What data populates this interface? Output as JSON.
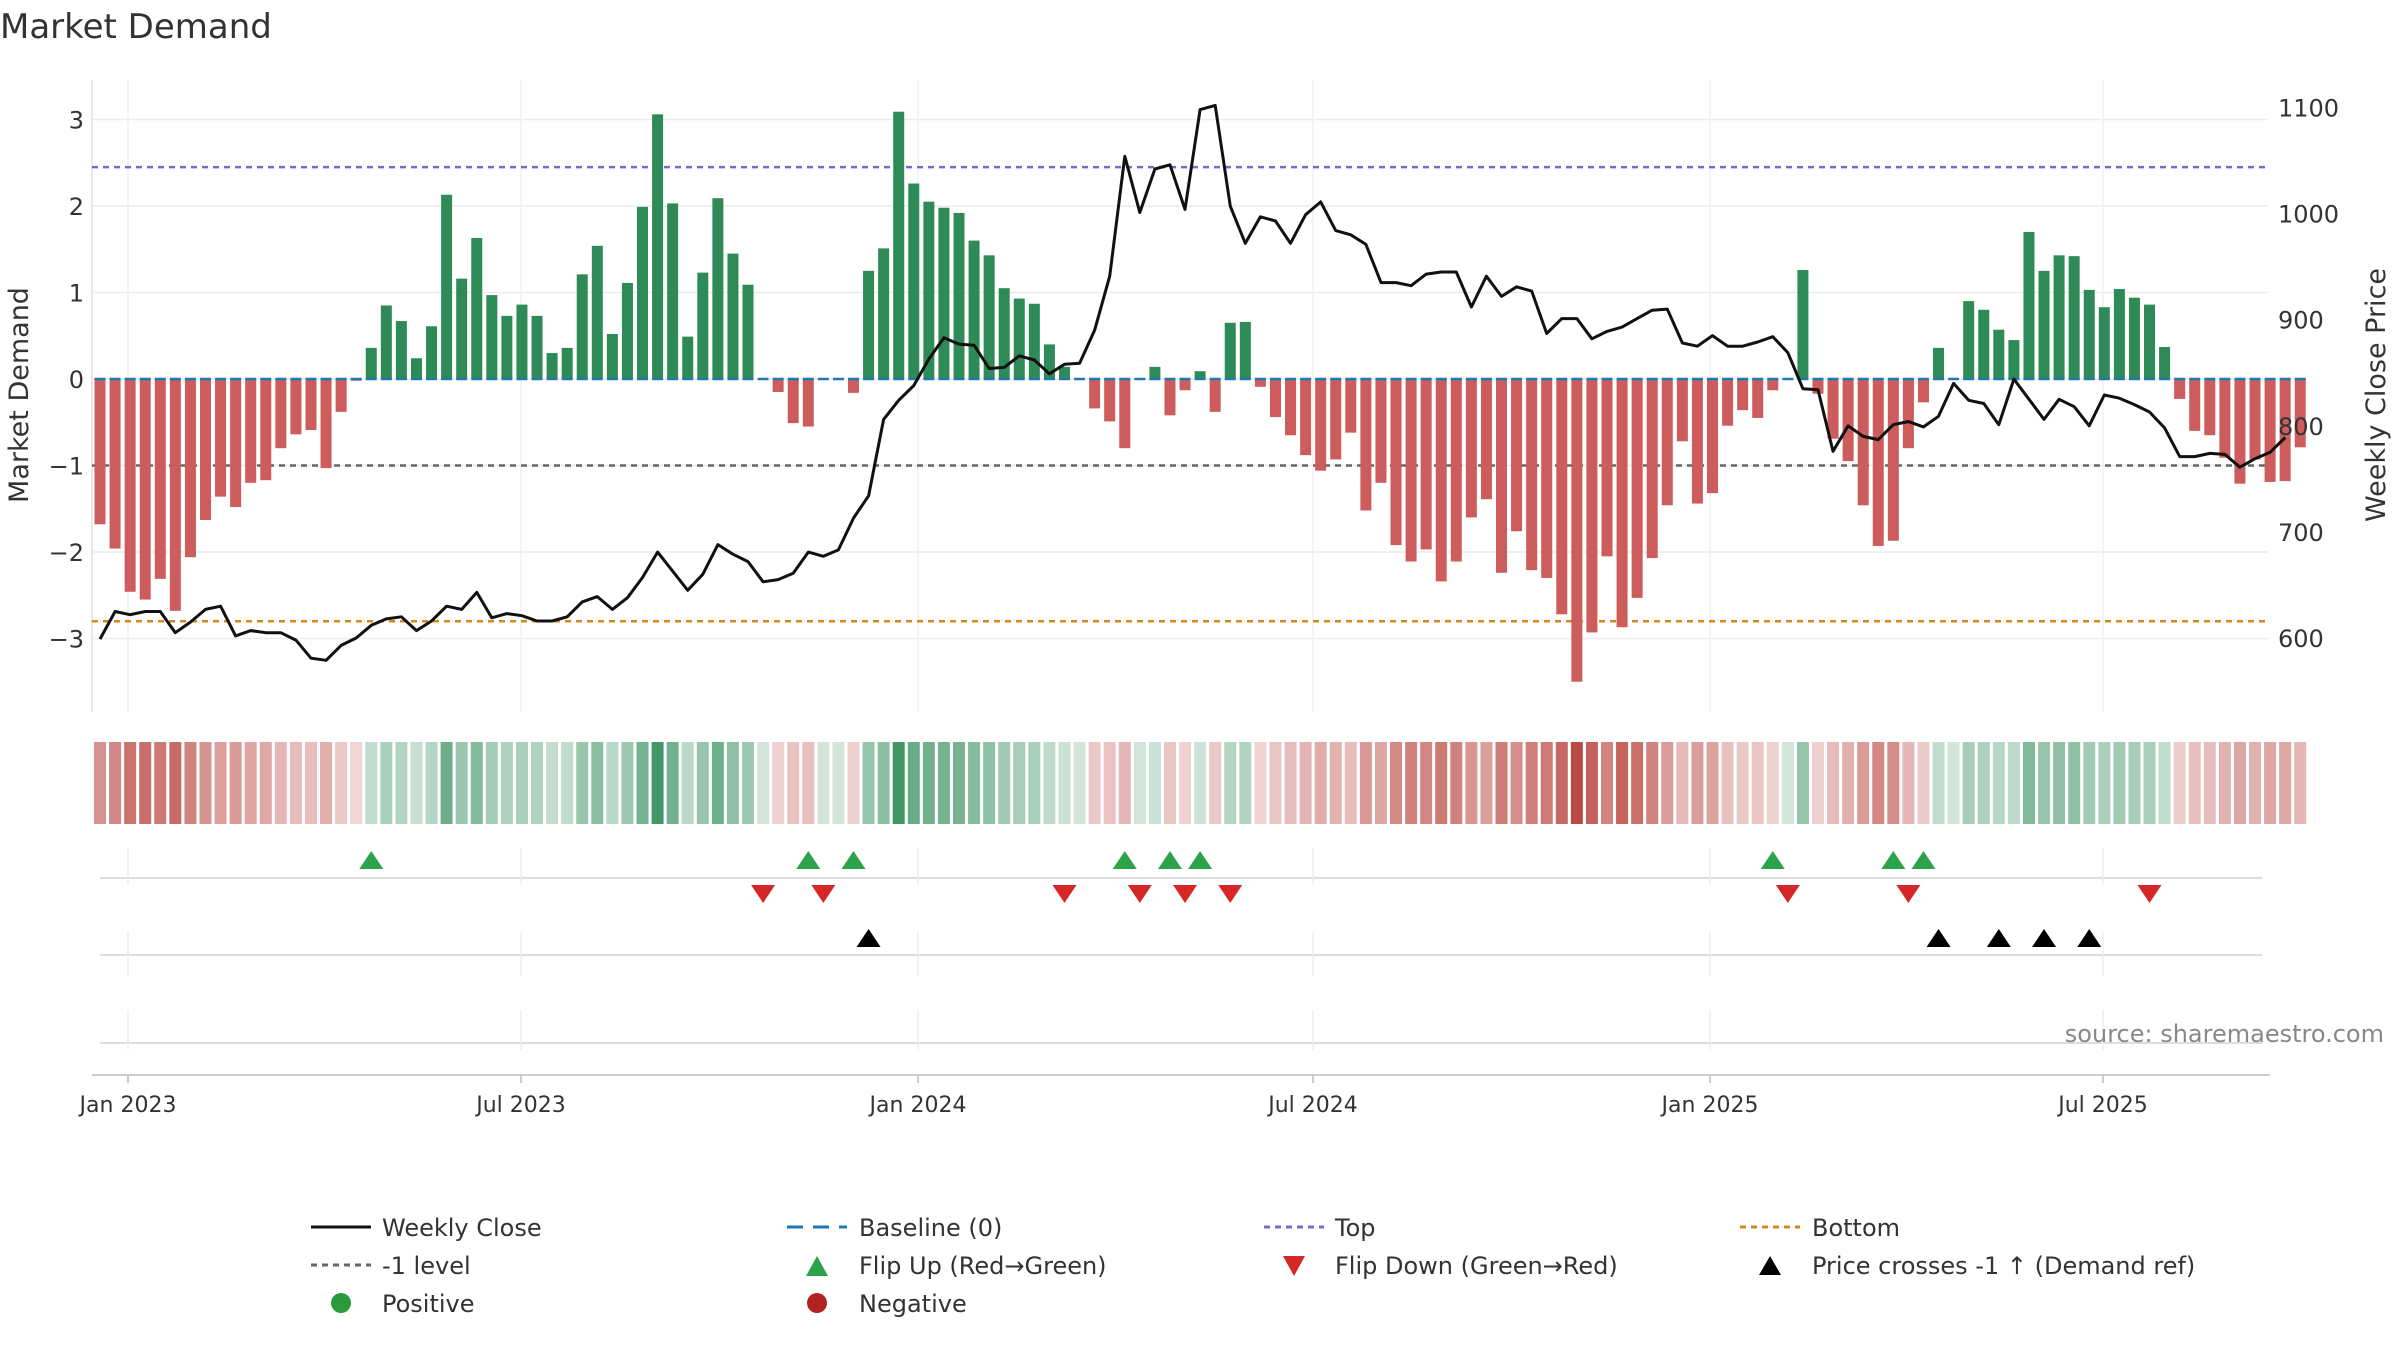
{
  "chart_data": {
    "type": "bar",
    "title": "Market Demand",
    "ylabel": "Market Demand",
    "y2label": "Weekly Close Price",
    "ylim": [
      -4.0,
      3.5
    ],
    "y2lim": [
      530,
      1115
    ],
    "yticks": [
      "3",
      "2",
      "1",
      "0",
      "−1",
      "−2",
      "−3"
    ],
    "y2ticks": [
      "1100",
      "1000",
      "900",
      "800",
      "700",
      "600"
    ],
    "xticks": [
      "Jan 2023",
      "Jul 2023",
      "Jan 2024",
      "Jul 2024",
      "Jan 2025",
      "Jul 2025"
    ],
    "reference_lines": {
      "top": 2.45,
      "minus_one": -1.0,
      "bottom": -2.8,
      "baseline": 0
    },
    "demand": [
      -1.68,
      -1.96,
      -2.46,
      -2.55,
      -2.31,
      -2.68,
      -2.06,
      -1.63,
      -1.36,
      -1.48,
      -1.2,
      -1.17,
      -0.8,
      -0.64,
      -0.59,
      -1.03,
      -0.38,
      -0.02,
      0.36,
      0.85,
      0.67,
      0.24,
      0.61,
      2.13,
      1.16,
      1.63,
      0.97,
      0.73,
      0.86,
      0.73,
      0.3,
      0.36,
      1.21,
      1.54,
      0.52,
      1.11,
      1.99,
      3.06,
      2.03,
      0.49,
      1.23,
      2.09,
      1.45,
      1.09,
      0,
      -0.15,
      -0.51,
      -0.55,
      0,
      0,
      -0.16,
      1.25,
      1.51,
      3.09,
      2.26,
      2.05,
      1.98,
      1.92,
      1.6,
      1.43,
      1.05,
      0.93,
      0.87,
      0.4,
      0.14,
      0,
      -0.34,
      -0.49,
      -0.8,
      0,
      0.14,
      -0.42,
      -0.13,
      0.09,
      -0.38,
      0.65,
      0.66,
      -0.09,
      -0.44,
      -0.65,
      -0.88,
      -1.06,
      -0.93,
      -0.62,
      -1.52,
      -1.2,
      -1.92,
      -2.11,
      -1.97,
      -2.34,
      -2.11,
      -1.6,
      -1.39,
      -2.24,
      -1.76,
      -2.21,
      -2.3,
      -2.72,
      -3.5,
      -2.93,
      -2.05,
      -2.87,
      -2.53,
      -2.07,
      -1.46,
      -0.72,
      -1.44,
      -1.32,
      -0.54,
      -0.36,
      -0.45,
      -0.13,
      0,
      1.26,
      -0.17,
      -0.69,
      -0.95,
      -1.46,
      -1.93,
      -1.87,
      -0.8,
      -0.27,
      0.36,
      0,
      0.9,
      0.8,
      0.57,
      0.45,
      1.7,
      1.25,
      1.43,
      1.42,
      1.03,
      0.83,
      1.04,
      0.94,
      0.86,
      0.37,
      -0.23,
      -0.6,
      -0.65,
      -0.91,
      -1.21,
      -0.93,
      -1.19,
      -1.18,
      -0.79
    ],
    "weekly_close": [
      599,
      625,
      622,
      625,
      625,
      605,
      615,
      627,
      630,
      602,
      607,
      605,
      605,
      598,
      581,
      579,
      593,
      600,
      612,
      618,
      620,
      607,
      616,
      630,
      627,
      643,
      619,
      623,
      621,
      616,
      616,
      620,
      634,
      639,
      627,
      638,
      657,
      681,
      663,
      645,
      660,
      688,
      679,
      672,
      653,
      655,
      661,
      681,
      677,
      683,
      713,
      734,
      806,
      824,
      838,
      863,
      883,
      877,
      876,
      854,
      855,
      866,
      862,
      849,
      858,
      859,
      890,
      941,
      1054,
      1001,
      1042,
      1046,
      1004,
      1098,
      1102,
      1007,
      972,
      997,
      993,
      972,
      999,
      1011,
      984,
      980,
      971,
      935,
      935,
      932,
      943,
      945,
      945,
      912,
      941,
      922,
      931,
      927,
      887,
      901,
      901,
      882,
      889,
      893,
      901,
      909,
      910,
      878,
      875,
      885,
      875,
      875,
      879,
      884,
      869,
      835,
      834,
      776,
      800,
      790,
      787,
      801,
      804,
      799,
      809,
      840,
      824,
      821,
      801,
      844,
      825,
      806,
      825,
      818,
      800,
      829,
      826,
      820,
      813,
      798,
      771,
      771,
      774,
      773,
      761,
      769,
      775,
      789
    ]
  },
  "legend": {
    "weekly_close": "Weekly Close",
    "baseline": "Baseline (0)",
    "top": "Top",
    "bottom": "Bottom",
    "minus_one": "-1 level",
    "flip_up": "Flip Up (Red→Green)",
    "flip_down": "Flip Down (Green→Red)",
    "price_cross": "Price crosses -1 ↑ (Demand ref)",
    "positive": "Positive",
    "negative": "Negative"
  },
  "source": "source: sharemaestro.com",
  "markers": {
    "flip_up": [
      18,
      47,
      50,
      68,
      71,
      73,
      111,
      119,
      121
    ],
    "flip_down": [
      44,
      48,
      64,
      69,
      72,
      75,
      112,
      120,
      136
    ],
    "price_cross": [
      51,
      122,
      126,
      129,
      132
    ]
  },
  "colors": {
    "positive": "#2e8b57",
    "negative": "#cd5c5c",
    "price": "#111111",
    "baseline": "#1f77b4",
    "top": "#7b68c8",
    "bottom": "#d4891c",
    "minus_one": "#666666",
    "flip_up": "#2ca34a",
    "flip_down": "#d62728",
    "price_cross": "#000000",
    "legend_positive": "#2a9a3a",
    "legend_negative": "#b22222"
  }
}
